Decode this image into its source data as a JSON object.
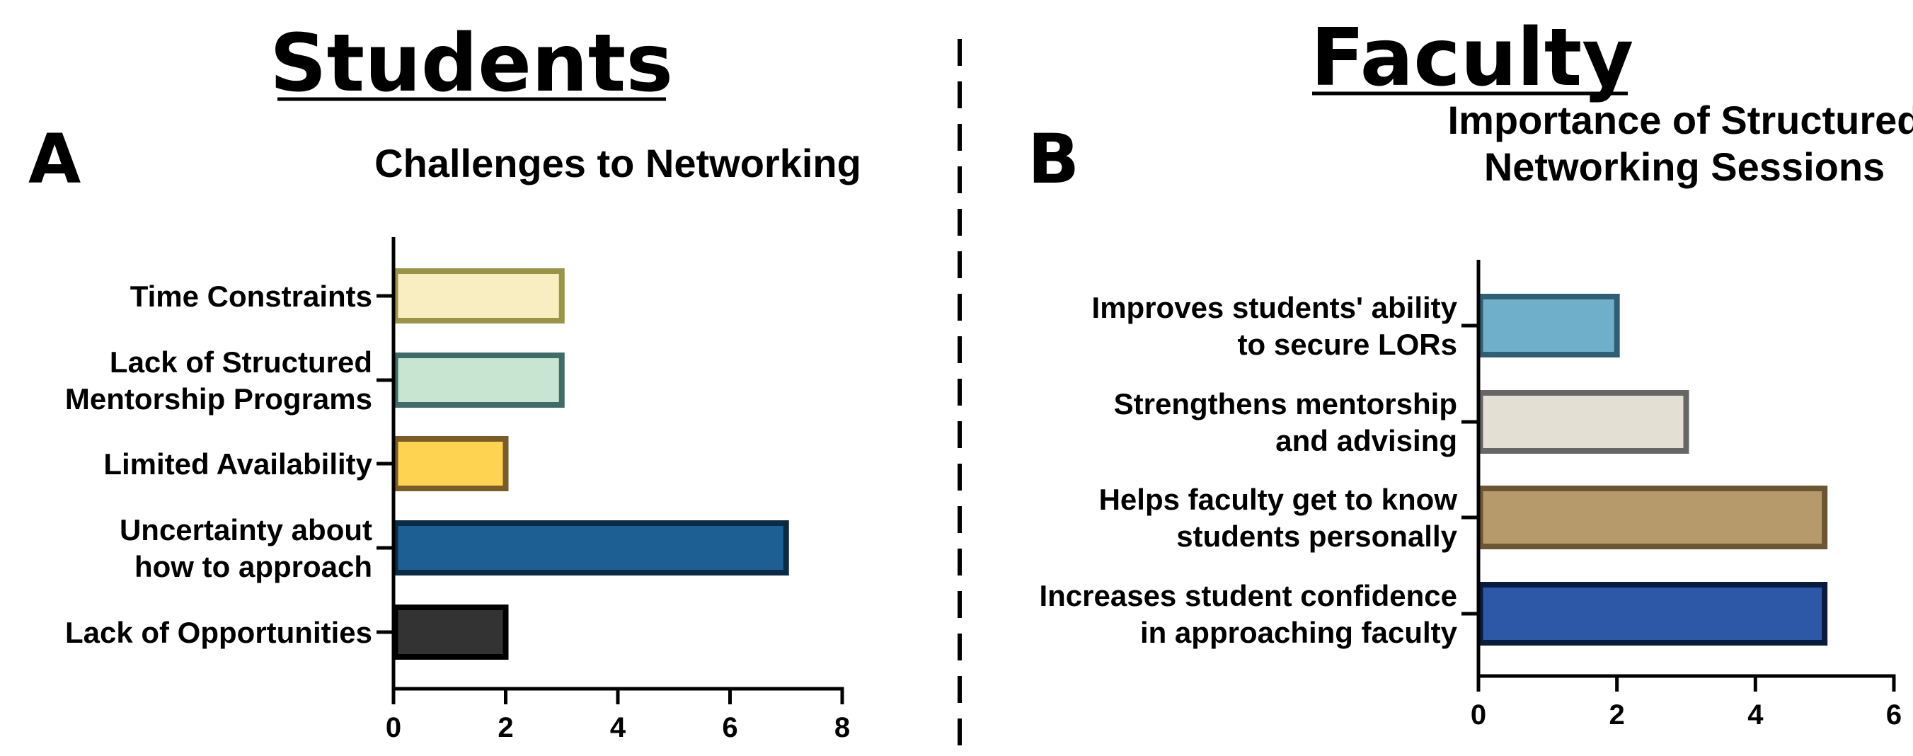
{
  "headings": {
    "left": "Students",
    "right": "Faculty"
  },
  "panel_letters": {
    "left": "A",
    "right": "B"
  },
  "chart_data": [
    {
      "type": "bar",
      "orientation": "horizontal",
      "title": "Challenges to Networking",
      "categories": [
        "Time Constraints",
        "Lack of Structured\nMentorship Programs",
        "Limited Availability",
        "Uncertainty about\nhow to approach",
        "Lack of Opportunities"
      ],
      "values": [
        3,
        3,
        2,
        7,
        2
      ],
      "fills": [
        "#f9eec2",
        "#c7e5d0",
        "#fed352",
        "#1d5f93",
        "#333333"
      ],
      "strokes": [
        "#9a9544",
        "#3f6b68",
        "#7a5c2a",
        "#0b2a44",
        "#000000"
      ],
      "xlim": [
        0,
        8
      ],
      "xticks": [
        0,
        2,
        4,
        6,
        8
      ],
      "grid": false
    },
    {
      "type": "bar",
      "orientation": "horizontal",
      "title": "Importance of Structured\nNetworking Sessions",
      "categories": [
        "Improves students' ability\nto secure LORs",
        "Strengthens mentorship\nand advising",
        "Helps faculty get to know\nstudents personally",
        "Increases student confidence\nin approaching faculty"
      ],
      "values": [
        2,
        3,
        5,
        5
      ],
      "fills": [
        "#6fafca",
        "#e3dfd3",
        "#b69a6c",
        "#2d58a8"
      ],
      "strokes": [
        "#2f5f74",
        "#666666",
        "#6b5532",
        "#0a1c3e"
      ],
      "xlim": [
        0,
        6
      ],
      "xticks": [
        0,
        2,
        4,
        6
      ],
      "grid": false
    }
  ]
}
